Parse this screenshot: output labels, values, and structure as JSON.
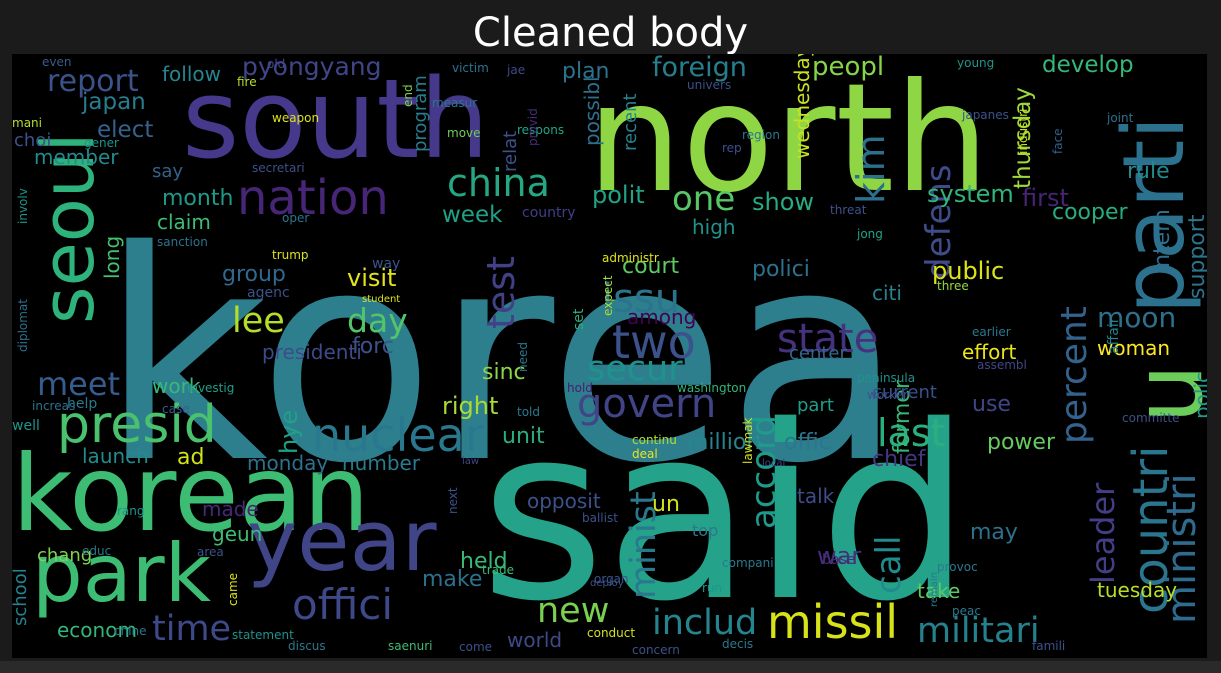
{
  "title": "Cleaned body",
  "words": [
    {
      "t": "korea",
      "c": "#2e7f8e"
    },
    {
      "t": "said",
      "c": "#25a38a"
    },
    {
      "t": "north",
      "c": "#8ed644"
    },
    {
      "t": "south",
      "c": "#46388a"
    },
    {
      "t": "korean",
      "c": "#3dbc74"
    },
    {
      "t": "seoul",
      "c": "#2eb37c"
    },
    {
      "t": "park",
      "c": "#3dbc74"
    },
    {
      "t": "year",
      "c": "#404588"
    },
    {
      "t": "u",
      "c": "#6ccd5a"
    },
    {
      "t": "parti",
      "c": "#2c728e"
    },
    {
      "t": "presid",
      "c": "#4ac16d"
    },
    {
      "t": "nation",
      "c": "#482677"
    },
    {
      "t": "offici",
      "c": "#3f4889"
    },
    {
      "t": "missil",
      "c": "#d8e219"
    },
    {
      "t": "govern",
      "c": "#414487"
    },
    {
      "t": "nuclear",
      "c": "#2a788e"
    },
    {
      "t": "two",
      "c": "#3b528b"
    },
    {
      "t": "state",
      "c": "#46317e"
    },
    {
      "t": "countri",
      "c": "#2a768e"
    },
    {
      "t": "ministri",
      "c": "#2f6b8e"
    },
    {
      "t": "militari",
      "c": "#26818e"
    },
    {
      "t": "includ",
      "c": "#25858e"
    },
    {
      "t": "new",
      "c": "#7ad151"
    },
    {
      "t": "time",
      "c": "#3e4989"
    },
    {
      "t": "china",
      "c": "#26a784"
    },
    {
      "t": "kim",
      "c": "#2d708e"
    },
    {
      "t": "defens",
      "c": "#3e4c8a"
    },
    {
      "t": "percent",
      "c": "#33638d"
    },
    {
      "t": "leader",
      "c": "#433e85"
    },
    {
      "t": "accord",
      "c": "#1e9b8a"
    },
    {
      "t": "call",
      "c": "#228c8d"
    },
    {
      "t": "last",
      "c": "#2ab07f"
    },
    {
      "t": "secur",
      "c": "#20928c"
    },
    {
      "t": "issu",
      "c": "#2c738e"
    },
    {
      "t": "minist",
      "c": "#2a788e"
    },
    {
      "t": "moon",
      "c": "#2d708e"
    },
    {
      "t": "test",
      "c": "#424086"
    },
    {
      "t": "day",
      "c": "#52c569"
    },
    {
      "t": "lee",
      "c": "#b5de2b"
    },
    {
      "t": "meet",
      "c": "#365c8d"
    },
    {
      "t": "report",
      "c": "#3b528b"
    },
    {
      "t": "one",
      "c": "#56c667"
    },
    {
      "t": "pyongyang",
      "c": "#404588"
    },
    {
      "t": "foreign",
      "c": "#277f8e"
    },
    {
      "t": "peopl",
      "c": "#86d549"
    },
    {
      "t": "develop",
      "c": "#35b779"
    },
    {
      "t": "support",
      "c": "#2b748e"
    },
    {
      "t": "elect",
      "c": "#33638d"
    },
    {
      "t": "japan",
      "c": "#287d8e"
    },
    {
      "t": "follow",
      "c": "#24868e"
    },
    {
      "t": "plan",
      "c": "#2c728e"
    },
    {
      "t": "rule",
      "c": "#238a8d"
    },
    {
      "t": "thursday",
      "c": "#a0da39"
    },
    {
      "t": "wednesday",
      "c": "#cae11f"
    },
    {
      "t": "system",
      "c": "#31b57b"
    },
    {
      "t": "first",
      "c": "#482475"
    },
    {
      "t": "cooper",
      "c": "#27ad81"
    },
    {
      "t": "intern",
      "c": "#2e6e8e"
    },
    {
      "t": "polit",
      "c": "#20a386"
    },
    {
      "t": "show",
      "c": "#25ac82"
    },
    {
      "t": "week",
      "c": "#1fa088"
    },
    {
      "t": "high",
      "c": "#21918c"
    },
    {
      "t": "court",
      "c": "#5ec962"
    },
    {
      "t": "polici",
      "c": "#2c728e"
    },
    {
      "t": "citi",
      "c": "#25838e"
    },
    {
      "t": "public",
      "c": "#dde318"
    },
    {
      "t": "visit",
      "c": "#e5e419"
    },
    {
      "t": "forc",
      "c": "#3b528b"
    },
    {
      "t": "group",
      "c": "#31688e"
    },
    {
      "t": "month",
      "c": "#1f998a"
    },
    {
      "t": "claim",
      "c": "#3dbc74"
    },
    {
      "t": "say",
      "c": "#33638d"
    },
    {
      "t": "member",
      "c": "#238a8d"
    },
    {
      "t": "choi",
      "c": "#3b528b"
    },
    {
      "t": "long",
      "c": "#46c06f"
    },
    {
      "t": "presidenti",
      "c": "#3e4a89"
    },
    {
      "t": "hye",
      "c": "#1fa187"
    },
    {
      "t": "right",
      "c": "#a8db34"
    },
    {
      "t": "sinc",
      "c": "#8bd646"
    },
    {
      "t": "unit",
      "c": "#29af7f"
    },
    {
      "t": "work",
      "c": "#37b878"
    },
    {
      "t": "ad",
      "c": "#d2e21b"
    },
    {
      "t": "launch",
      "c": "#228b8d"
    },
    {
      "t": "monday",
      "c": "#2c728e"
    },
    {
      "t": "number",
      "c": "#297b8e"
    },
    {
      "t": "million",
      "c": "#24868e"
    },
    {
      "t": "offic",
      "c": "#2b758e"
    },
    {
      "t": "power",
      "c": "#65cb5e"
    },
    {
      "t": "use",
      "c": "#404688"
    },
    {
      "t": "chief",
      "c": "#453781"
    },
    {
      "t": "former",
      "c": "#37b878"
    },
    {
      "t": "talk",
      "c": "#3e4c8a"
    },
    {
      "t": "war",
      "c": "#472e7c"
    },
    {
      "t": "may",
      "c": "#2d708e"
    },
    {
      "t": "woman",
      "c": "#fde725"
    },
    {
      "t": "effort",
      "c": "#eae51a"
    },
    {
      "t": "polic",
      "c": "#1f9a8a"
    },
    {
      "t": "tuesday",
      "c": "#b8de29"
    },
    {
      "t": "held",
      "c": "#38b977"
    },
    {
      "t": "make",
      "c": "#2d708e"
    },
    {
      "t": "world",
      "c": "#3e4989"
    },
    {
      "t": "econom",
      "c": "#33b679"
    },
    {
      "t": "take",
      "c": "#5ec962"
    },
    {
      "t": "un",
      "c": "#d2e21b"
    },
    {
      "t": "opposit",
      "c": "#3b528b"
    },
    {
      "t": "made",
      "c": "#482878"
    },
    {
      "t": "geun",
      "c": "#3dbc74"
    },
    {
      "t": "chang",
      "c": "#7fd34e"
    },
    {
      "t": "school",
      "c": "#26828e"
    },
    {
      "t": "current",
      "c": "#3c508b"
    },
    {
      "t": "part",
      "c": "#1f9e89"
    },
    {
      "t": "possibl",
      "c": "#2d708e"
    },
    {
      "t": "relat",
      "c": "#3b528b"
    },
    {
      "t": "program",
      "c": "#287c8e"
    },
    {
      "t": "recent",
      "c": "#26828e"
    },
    {
      "t": "gener",
      "c": "#1f948c"
    },
    {
      "t": "mani",
      "c": "#b5de2b"
    },
    {
      "t": "weapon",
      "c": "#dde318"
    },
    {
      "t": "end",
      "c": "#7fd34e"
    },
    {
      "t": "victim",
      "c": "#2b748e"
    },
    {
      "t": "jae",
      "c": "#3e4a89"
    },
    {
      "t": "respons",
      "c": "#21a685"
    },
    {
      "t": "move",
      "c": "#6ece58"
    },
    {
      "t": "measur",
      "c": "#2c738e"
    },
    {
      "t": "provid",
      "c": "#472c7a"
    },
    {
      "t": "young",
      "c": "#1f958b"
    },
    {
      "t": "univers",
      "c": "#3c508b"
    },
    {
      "t": "japanes",
      "c": "#3b528b"
    },
    {
      "t": "joint",
      "c": "#2e6f8e"
    },
    {
      "t": "industri",
      "c": "#c5e021"
    },
    {
      "t": "face",
      "c": "#355f8d"
    },
    {
      "t": "region",
      "c": "#2a778e"
    },
    {
      "t": "rep",
      "c": "#3b528b"
    },
    {
      "t": "fire",
      "c": "#b8de29"
    },
    {
      "t": "old",
      "c": "#404688"
    },
    {
      "t": "even",
      "c": "#365c8d"
    },
    {
      "t": "secretari",
      "c": "#3b528b"
    },
    {
      "t": "involv",
      "c": "#1f958b"
    },
    {
      "t": "diplomat",
      "c": "#2d708e"
    },
    {
      "t": "sanction",
      "c": "#2c728e"
    },
    {
      "t": "oper",
      "c": "#2a778e"
    },
    {
      "t": "country",
      "c": "#433e85"
    },
    {
      "t": "threat",
      "c": "#3b528b"
    },
    {
      "t": "jong",
      "c": "#20a386"
    },
    {
      "t": "trump",
      "c": "#dde318"
    },
    {
      "t": "way",
      "c": "#3b528b"
    },
    {
      "t": "student",
      "c": "#dde318"
    },
    {
      "t": "administr",
      "c": "#dde318"
    },
    {
      "t": "set",
      "c": "#29af7f"
    },
    {
      "t": "expect",
      "c": "#a8db34"
    },
    {
      "t": "among",
      "c": "#440154"
    },
    {
      "t": "three",
      "c": "#95d840"
    },
    {
      "t": "affair",
      "c": "#26828e"
    },
    {
      "t": "earlier",
      "c": "#2a788e"
    },
    {
      "t": "assembl",
      "c": "#404688"
    },
    {
      "t": "center",
      "c": "#31688e"
    },
    {
      "t": "agenc",
      "c": "#3b528b"
    },
    {
      "t": "need",
      "c": "#2a788e"
    },
    {
      "t": "hold",
      "c": "#481c6e"
    },
    {
      "t": "washington",
      "c": "#31b57b"
    },
    {
      "t": "peninsula",
      "c": "#21918c"
    },
    {
      "t": "worker",
      "c": "#3b528b"
    },
    {
      "t": "investig",
      "c": "#1f9e89"
    },
    {
      "t": "help",
      "c": "#2a788e"
    },
    {
      "t": "case",
      "c": "#355f8d"
    },
    {
      "t": "increas",
      "c": "#2d708e"
    },
    {
      "t": "well",
      "c": "#1f958b"
    },
    {
      "t": "told",
      "c": "#2a788e"
    },
    {
      "t": "continu",
      "c": "#b5de2b"
    },
    {
      "t": "deal",
      "c": "#eae51a"
    },
    {
      "t": "law",
      "c": "#414487"
    },
    {
      "t": "lawmak",
      "c": "#d2e21b"
    },
    {
      "t": "local",
      "c": "#414487"
    },
    {
      "t": "committe",
      "c": "#3b528b"
    },
    {
      "t": "rang",
      "c": "#1f958b"
    },
    {
      "t": "next",
      "c": "#3b528b"
    },
    {
      "t": "ballist",
      "c": "#3b528b"
    },
    {
      "t": "top",
      "c": "#2a788e"
    },
    {
      "t": "base",
      "c": "#472c7a"
    },
    {
      "t": "provoc",
      "c": "#2a788e"
    },
    {
      "t": "educ",
      "c": "#2a788e"
    },
    {
      "t": "trade",
      "c": "#3dbc74"
    },
    {
      "t": "organ",
      "c": "#3b528b"
    },
    {
      "t": "compani",
      "c": "#2a788e"
    },
    {
      "t": "area",
      "c": "#3b528b"
    },
    {
      "t": "came",
      "c": "#dde318"
    },
    {
      "t": "deploy",
      "c": "#3b528b"
    },
    {
      "t": "run",
      "c": "#1f958b"
    },
    {
      "t": "remain",
      "c": "#2a788e"
    },
    {
      "t": "peac",
      "c": "#2a788e"
    },
    {
      "t": "chine",
      "c": "#2a788e"
    },
    {
      "t": "statement",
      "c": "#21918c"
    },
    {
      "t": "discus",
      "c": "#2a788e"
    },
    {
      "t": "saenuri",
      "c": "#3dbc74"
    },
    {
      "t": "come",
      "c": "#3b528b"
    },
    {
      "t": "conduct",
      "c": "#d2e21b"
    },
    {
      "t": "concern",
      "c": "#3b528b"
    },
    {
      "t": "decis",
      "c": "#2a788e"
    },
    {
      "t": "famili",
      "c": "#3b528b"
    }
  ]
}
